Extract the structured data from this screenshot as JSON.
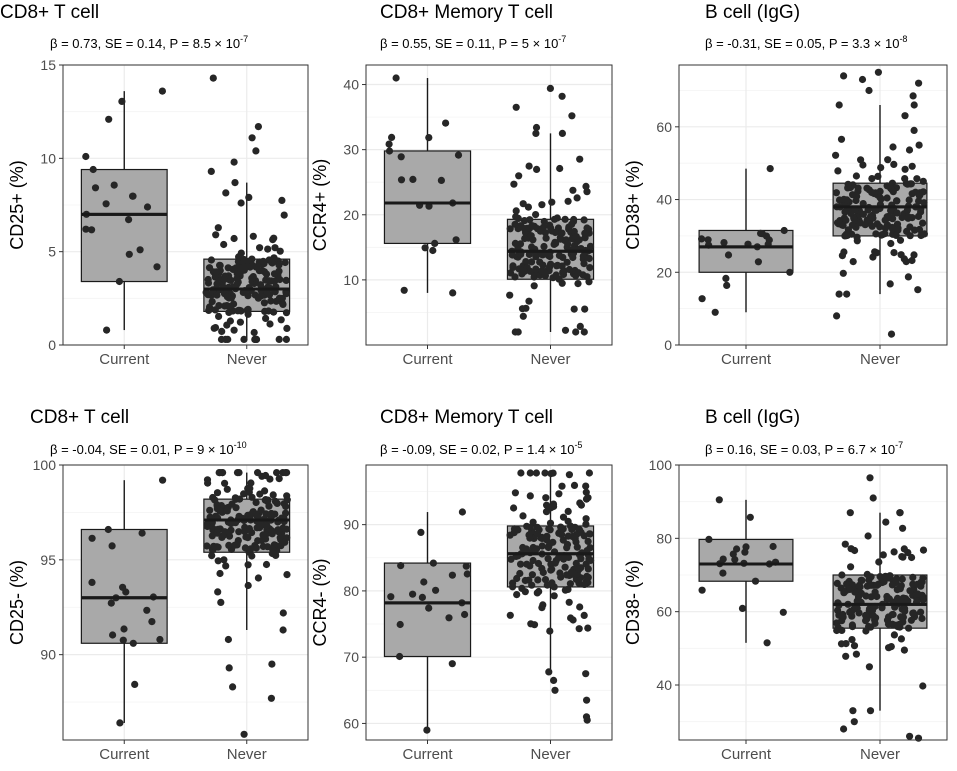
{
  "chart_data": [
    {
      "type": "box",
      "title": "CD8+ T cell",
      "stat": {
        "beta": "0.73",
        "se": "0.14",
        "p_mantissa": "8.5",
        "p_exp": "-7"
      },
      "ylabel": "CD25+ (%)",
      "ylim": [
        0,
        15
      ],
      "yticks": [
        "0",
        "5",
        "10",
        "15"
      ],
      "categories": [
        "Current",
        "Never"
      ],
      "boxes": [
        {
          "name": "Current",
          "min": 0.8,
          "q1": 3.4,
          "median": 7.0,
          "q3": 9.4,
          "max": 13.6,
          "n": 20
        },
        {
          "name": "Never",
          "min": 0.3,
          "q1": 1.8,
          "median": 3.0,
          "q3": 4.6,
          "max": 8.7,
          "n": 190
        }
      ],
      "outliers": [
        {
          "group": "Never",
          "value": 14.3
        },
        {
          "group": "Never",
          "value": 11.7
        },
        {
          "group": "Never",
          "value": 11.1
        },
        {
          "group": "Never",
          "value": 10.4
        },
        {
          "group": "Never",
          "value": 9.8
        },
        {
          "group": "Never",
          "value": 9.3
        }
      ]
    },
    {
      "type": "box",
      "title": "CD8+ Memory T cell",
      "stat": {
        "beta": "0.55",
        "se": "0.11",
        "p_mantissa": "5",
        "p_exp": "-7"
      },
      "ylabel": "CCR4+ (%)",
      "ylim": [
        0,
        43
      ],
      "yticks": [
        "10",
        "20",
        "30",
        "40"
      ],
      "categories": [
        "Current",
        "Never"
      ],
      "boxes": [
        {
          "name": "Current",
          "min": 8.0,
          "q1": 15.6,
          "median": 21.8,
          "q3": 29.8,
          "max": 41.0,
          "n": 20
        },
        {
          "name": "Never",
          "min": 2.0,
          "q1": 10.1,
          "median": 14.4,
          "q3": 19.3,
          "max": 32.5,
          "n": 190
        }
      ],
      "outliers": [
        {
          "group": "Never",
          "value": 39.4
        },
        {
          "group": "Never",
          "value": 38.2
        },
        {
          "group": "Never",
          "value": 36.5
        },
        {
          "group": "Never",
          "value": 35.2
        },
        {
          "group": "Never",
          "value": 33.4
        }
      ]
    },
    {
      "type": "box",
      "title": "B cell (IgG)",
      "stat": {
        "beta": "-0.31",
        "se": "0.05",
        "p_mantissa": "3.3",
        "p_exp": "-8"
      },
      "ylabel": "CD38+ (%)",
      "ylim": [
        0,
        77
      ],
      "yticks": [
        "0",
        "20",
        "40",
        "60"
      ],
      "categories": [
        "Current",
        "Never"
      ],
      "boxes": [
        {
          "name": "Current",
          "min": 9.0,
          "q1": 20.0,
          "median": 27.0,
          "q3": 31.5,
          "max": 48.5,
          "n": 20
        },
        {
          "name": "Never",
          "min": 14.0,
          "q1": 30.0,
          "median": 38.0,
          "q3": 44.5,
          "max": 66.0,
          "n": 190
        }
      ],
      "outliers": [
        {
          "group": "Never",
          "value": 75.0
        },
        {
          "group": "Never",
          "value": 74.0
        },
        {
          "group": "Never",
          "value": 73.0
        },
        {
          "group": "Never",
          "value": 72.0
        },
        {
          "group": "Never",
          "value": 70.0
        },
        {
          "group": "Never",
          "value": 68.5
        },
        {
          "group": "Never",
          "value": 8.0
        },
        {
          "group": "Never",
          "value": 3.0
        }
      ]
    },
    {
      "type": "box",
      "title": "CD8+ T cell",
      "stat": {
        "beta": "-0.04",
        "se": "0.01",
        "p_mantissa": "9",
        "p_exp": "-10"
      },
      "ylabel": "CD25- (%)",
      "ylim": [
        85.5,
        100
      ],
      "yticks": [
        "90",
        "95",
        "100"
      ],
      "categories": [
        "Current",
        "Never"
      ],
      "boxes": [
        {
          "name": "Current",
          "min": 86.4,
          "q1": 90.6,
          "median": 93.0,
          "q3": 96.6,
          "max": 99.2,
          "n": 20
        },
        {
          "name": "Never",
          "min": 91.3,
          "q1": 95.4,
          "median": 97.1,
          "q3": 98.2,
          "max": 99.6,
          "n": 190
        }
      ],
      "outliers": [
        {
          "group": "Never",
          "value": 90.8
        },
        {
          "group": "Never",
          "value": 89.5
        },
        {
          "group": "Never",
          "value": 89.3
        },
        {
          "group": "Never",
          "value": 88.3
        },
        {
          "group": "Never",
          "value": 87.7
        },
        {
          "group": "Never",
          "value": 85.8
        }
      ]
    },
    {
      "type": "box",
      "title": "CD8+ Memory T cell",
      "stat": {
        "beta": "-0.09",
        "se": "0.02",
        "p_mantissa": "1.4",
        "p_exp": "-5"
      },
      "ylabel": "CCR4- (%)",
      "ylim": [
        57.5,
        99
      ],
      "yticks": [
        "60",
        "70",
        "80",
        "90"
      ],
      "categories": [
        "Current",
        "Never"
      ],
      "boxes": [
        {
          "name": "Current",
          "min": 59.0,
          "q1": 70.1,
          "median": 78.2,
          "q3": 84.2,
          "max": 91.9,
          "n": 20
        },
        {
          "name": "Never",
          "min": 67.5,
          "q1": 80.6,
          "median": 85.6,
          "q3": 89.8,
          "max": 97.8,
          "n": 190
        }
      ],
      "outliers": [
        {
          "group": "Never",
          "value": 66.5
        },
        {
          "group": "Never",
          "value": 65.0
        },
        {
          "group": "Never",
          "value": 63.5
        },
        {
          "group": "Never",
          "value": 61.0
        },
        {
          "group": "Never",
          "value": 60.5
        }
      ]
    },
    {
      "type": "box",
      "title": "B cell (IgG)",
      "stat": {
        "beta": "0.16",
        "se": "0.03",
        "p_mantissa": "6.7",
        "p_exp": "-7"
      },
      "ylabel": "CD38- (%)",
      "ylim": [
        25,
        100
      ],
      "yticks": [
        "40",
        "60",
        "80",
        "100"
      ],
      "categories": [
        "Current",
        "Never"
      ],
      "boxes": [
        {
          "name": "Current",
          "min": 51.5,
          "q1": 68.3,
          "median": 73.0,
          "q3": 79.7,
          "max": 90.5,
          "n": 20
        },
        {
          "name": "Never",
          "min": 33.0,
          "q1": 55.5,
          "median": 62.0,
          "q3": 70.0,
          "max": 87.0,
          "n": 190
        }
      ],
      "outliers": [
        {
          "group": "Never",
          "value": 96.5
        },
        {
          "group": "Never",
          "value": 91.0
        },
        {
          "group": "Never",
          "value": 30.0
        },
        {
          "group": "Never",
          "value": 28.0
        },
        {
          "group": "Never",
          "value": 26.0
        },
        {
          "group": "Never",
          "value": 25.5
        }
      ]
    }
  ]
}
